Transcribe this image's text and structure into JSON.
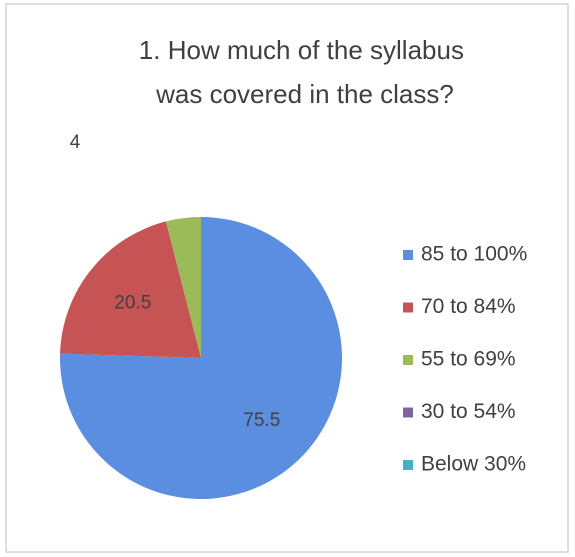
{
  "chart_data": {
    "type": "pie",
    "title": "1. How much of the syllabus was covered in the class?",
    "categories": [
      "85 to 100%",
      "70 to 84%",
      "55 to 69%",
      "30 to 54%",
      "Below 30%"
    ],
    "values": [
      75.5,
      20.5,
      4,
      0,
      0
    ],
    "colors": [
      "#5b8ee0",
      "#c65454",
      "#9bbb59",
      "#8064a2",
      "#4bacc6"
    ],
    "legend": "right"
  }
}
